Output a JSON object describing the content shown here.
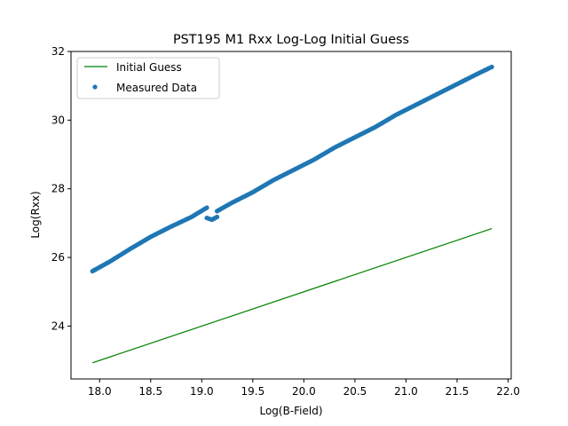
{
  "chart_data": {
    "type": "scatter",
    "title": "PST195 M1 Rxx Log-Log Initial Guess",
    "xlabel": "Log(B-Field)",
    "ylabel": "Log(Rxx)",
    "xlim": [
      17.72,
      22.03
    ],
    "ylim": [
      22.46,
      32.0
    ],
    "xticks": [
      18.0,
      18.5,
      19.0,
      19.5,
      20.0,
      20.5,
      21.0,
      21.5,
      22.0
    ],
    "xtick_labels": [
      "18.0",
      "18.5",
      "19.0",
      "19.5",
      "20.0",
      "20.5",
      "21.0",
      "21.5",
      "22.0"
    ],
    "yticks": [
      24,
      26,
      28,
      30,
      32
    ],
    "ytick_labels": [
      "24",
      "26",
      "28",
      "30",
      "32"
    ],
    "grid": false,
    "legend_position": "upper-left",
    "series": [
      {
        "name": "Initial Guess",
        "kind": "line",
        "color": "#008000",
        "x": [
          17.93,
          21.84
        ],
        "y": [
          22.93,
          26.84
        ]
      },
      {
        "name": "Measured Data",
        "kind": "scatter",
        "color": "#1f77b4",
        "segments": [
          {
            "x": [
              17.93,
              18.1,
              18.3,
              18.5,
              18.7,
              18.9,
              19.05
            ],
            "y": [
              25.6,
              25.88,
              26.25,
              26.6,
              26.9,
              27.18,
              27.45
            ]
          },
          {
            "x": [
              19.05,
              19.1,
              19.15
            ],
            "y": [
              27.15,
              27.1,
              27.18
            ]
          },
          {
            "x": [
              19.15,
              19.3,
              19.5,
              19.7,
              19.9,
              20.1,
              20.3,
              20.5,
              20.7,
              20.9,
              21.1,
              21.3,
              21.5,
              21.7,
              21.84
            ],
            "y": [
              27.35,
              27.6,
              27.9,
              28.25,
              28.55,
              28.85,
              29.2,
              29.5,
              29.8,
              30.15,
              30.45,
              30.75,
              31.05,
              31.35,
              31.55
            ]
          }
        ]
      }
    ]
  }
}
